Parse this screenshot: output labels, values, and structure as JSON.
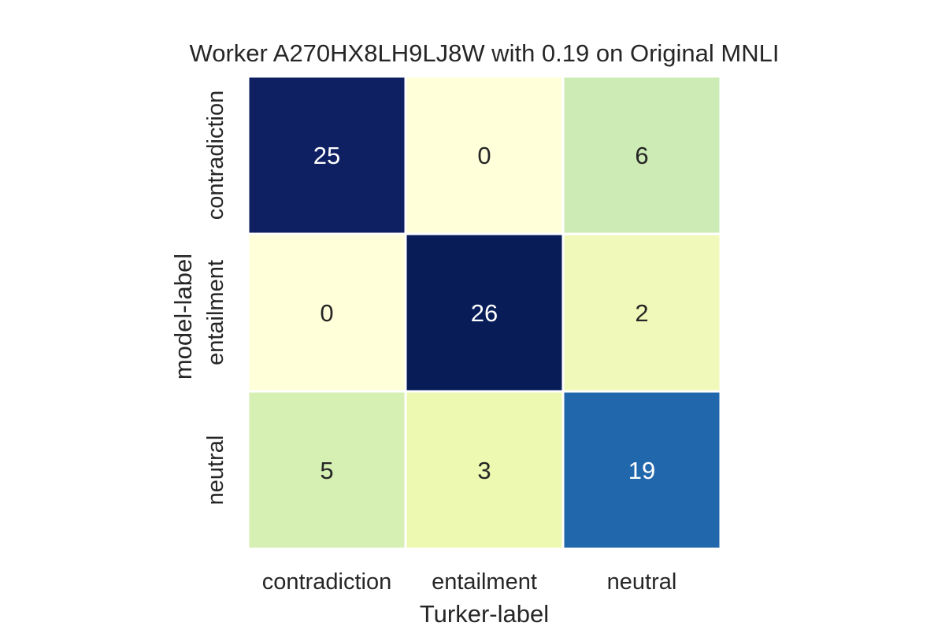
{
  "chart_data": {
    "type": "heatmap",
    "title": "Worker A270HX8LH9LJ8W with 0.19 on Original MNLI",
    "xlabel": "Turker-label",
    "ylabel": "model-label",
    "x_categories": [
      "contradiction",
      "entailment",
      "neutral"
    ],
    "y_categories": [
      "contradiction",
      "entailment",
      "neutral"
    ],
    "values": [
      [
        25,
        0,
        6
      ],
      [
        0,
        26,
        2
      ],
      [
        5,
        3,
        19
      ]
    ],
    "colormap": "YlGnBu",
    "vmin": 0,
    "vmax": 26,
    "colorbar": false,
    "cell_colors": [
      [
        "#0f2062",
        "#ffffd9",
        "#cdebb4"
      ],
      [
        "#ffffd9",
        "#081d58",
        "#f0f9b9"
      ],
      [
        "#d6efb3",
        "#edf8b1",
        "#2167ac"
      ]
    ],
    "cell_border_color": "#ffffff",
    "annotation_colors": {
      "dark": "#ffffff",
      "light": "#262626"
    }
  }
}
